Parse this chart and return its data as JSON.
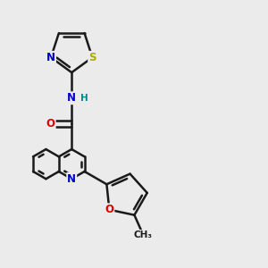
{
  "bg_color": "#ebebeb",
  "bond_color": "#1a1a1a",
  "bond_width": 1.8,
  "atom_colors": {
    "N": "#0000cc",
    "O": "#dd0000",
    "S": "#aaaa00",
    "C": "#1a1a1a",
    "H": "#008888"
  },
  "font_size": 8.5,
  "figsize": [
    3.0,
    3.0
  ],
  "dpi": 100
}
